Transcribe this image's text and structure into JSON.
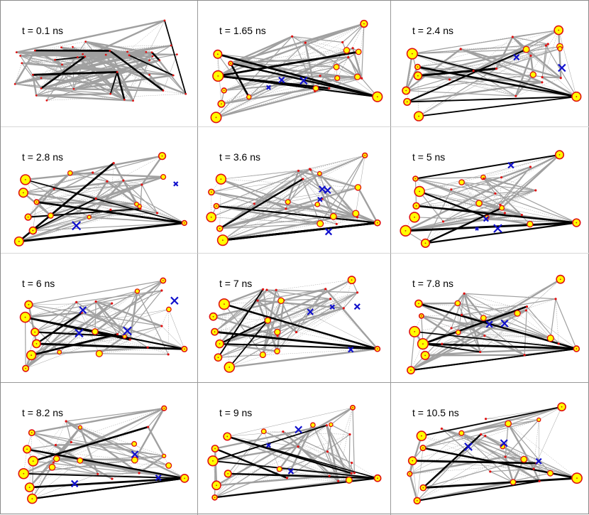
{
  "colors": {
    "edge_light": "#a0a0a0",
    "edge_dark": "#000000",
    "node_fill": "#ffff00",
    "node_ring": "#e01010",
    "defect": "#1010cc"
  },
  "panels": [
    {
      "label": "t = 0.1 ns"
    },
    {
      "label": "t = 1.65 ns"
    },
    {
      "label": "t = 2.4 ns"
    },
    {
      "label": "t = 2.8 ns"
    },
    {
      "label": "t = 3.6 ns"
    },
    {
      "label": "t = 5 ns"
    },
    {
      "label": "t = 6 ns"
    },
    {
      "label": "t = 7 ns"
    },
    {
      "label": "t = 7.8 ns"
    },
    {
      "label": "t = 8.2 ns"
    },
    {
      "label": "t = 9 ns"
    },
    {
      "label": "t = 10.5 ns"
    }
  ]
}
